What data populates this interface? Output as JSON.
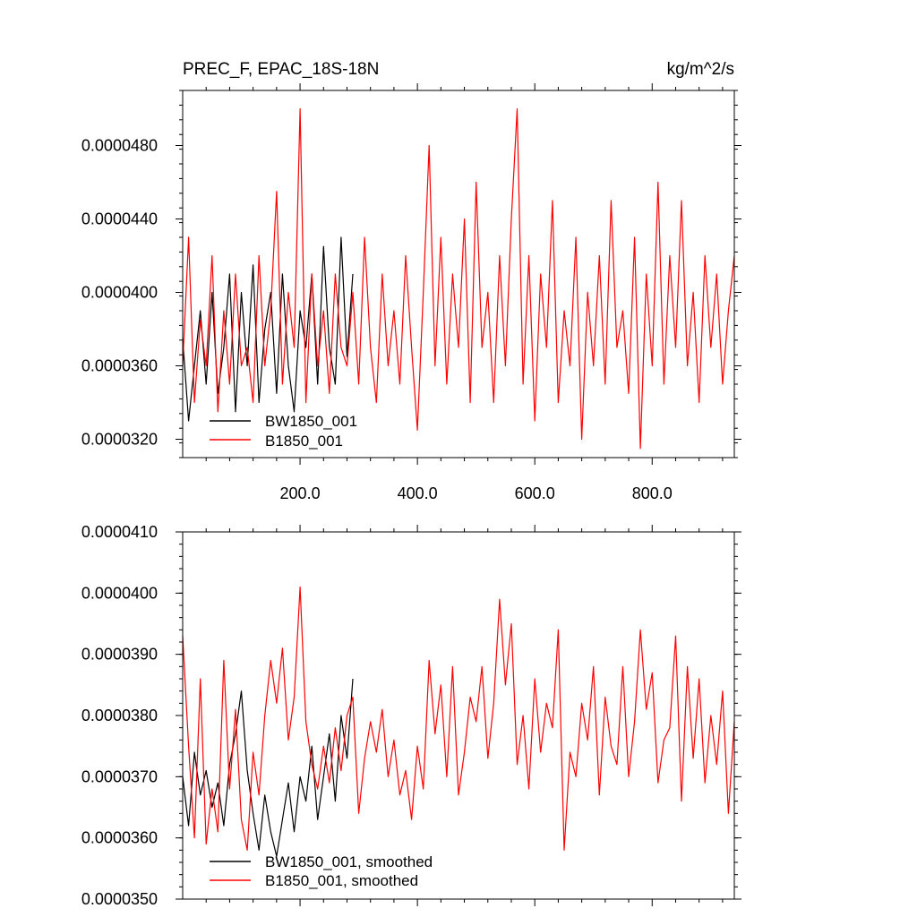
{
  "chart_data": [
    {
      "type": "line",
      "title": "PREC_F, EPAC_18S-18N",
      "units": "kg/m^2/s",
      "xlim": [
        0,
        940
      ],
      "ylim": [
        3.1e-05,
        5.1e-05
      ],
      "xticks": [
        200,
        400,
        600,
        800
      ],
      "xtick_labels": [
        "200.0",
        "400.0",
        "600.0",
        "800.0"
      ],
      "yticks": [
        3.2e-05,
        3.6e-05,
        4e-05,
        4.4e-05,
        4.8e-05
      ],
      "ytick_labels": [
        "0.0000320",
        "0.0000360",
        "0.0000400",
        "0.0000440",
        "0.0000480"
      ],
      "legend_position": "bottom-left",
      "series": [
        {
          "name": "BW1850_001",
          "color": "#000000",
          "x": [
            0,
            10,
            20,
            30,
            40,
            50,
            60,
            70,
            80,
            90,
            100,
            110,
            120,
            130,
            140,
            150,
            160,
            170,
            180,
            190,
            200,
            210,
            220,
            230,
            240,
            250,
            260,
            270,
            280,
            290
          ],
          "values": [
            3.75e-05,
            3.3e-05,
            3.6e-05,
            3.9e-05,
            3.5e-05,
            4e-05,
            3.45e-05,
            3.7e-05,
            4.1e-05,
            3.35e-05,
            4e-05,
            3.6e-05,
            4.15e-05,
            3.4e-05,
            3.8e-05,
            4e-05,
            3.45e-05,
            4.1e-05,
            3.6e-05,
            3.35e-05,
            3.9e-05,
            3.7e-05,
            4.1e-05,
            3.5e-05,
            4.25e-05,
            3.7e-05,
            3.5e-05,
            4.3e-05,
            3.65e-05,
            4.1e-05
          ]
        },
        {
          "name": "B1850_001",
          "color": "#ff0000",
          "x": [
            0,
            10,
            20,
            30,
            40,
            50,
            60,
            70,
            80,
            90,
            100,
            110,
            120,
            130,
            140,
            150,
            160,
            170,
            180,
            190,
            200,
            210,
            220,
            230,
            240,
            250,
            260,
            270,
            280,
            290,
            300,
            310,
            320,
            330,
            340,
            350,
            360,
            370,
            380,
            390,
            400,
            410,
            420,
            430,
            440,
            450,
            460,
            470,
            480,
            490,
            500,
            510,
            520,
            530,
            540,
            550,
            560,
            570,
            580,
            590,
            600,
            610,
            620,
            630,
            640,
            650,
            660,
            670,
            680,
            690,
            700,
            710,
            720,
            730,
            740,
            750,
            760,
            770,
            780,
            790,
            800,
            810,
            820,
            830,
            840,
            850,
            860,
            870,
            880,
            890,
            900,
            910,
            920,
            930,
            940
          ],
          "values": [
            3.6e-05,
            4.3e-05,
            3.4e-05,
            3.85e-05,
            3.6e-05,
            4.2e-05,
            3.35e-05,
            3.9e-05,
            3.5e-05,
            4.1e-05,
            3.6e-05,
            3.7e-05,
            3.4e-05,
            4.2e-05,
            3.6e-05,
            3.9e-05,
            4.55e-05,
            3.5e-05,
            4e-05,
            3.7e-05,
            5e-05,
            3.4e-05,
            4.1e-05,
            3.6e-05,
            3.9e-05,
            3.45e-05,
            4.1e-05,
            3.7e-05,
            3.6e-05,
            4e-05,
            3.5e-05,
            4.3e-05,
            3.7e-05,
            3.4e-05,
            4.1e-05,
            3.6e-05,
            3.9e-05,
            3.5e-05,
            4.2e-05,
            3.7e-05,
            3.25e-05,
            4e-05,
            4.8e-05,
            3.6e-05,
            4.3e-05,
            3.5e-05,
            4.1e-05,
            3.7e-05,
            4.4e-05,
            3.4e-05,
            4.6e-05,
            3.7e-05,
            4e-05,
            3.4e-05,
            4.2e-05,
            3.6e-05,
            4.4e-05,
            5e-05,
            3.5e-05,
            4.2e-05,
            3.3e-05,
            4.1e-05,
            3.7e-05,
            4.5e-05,
            3.4e-05,
            3.9e-05,
            3.6e-05,
            4.3e-05,
            3.2e-05,
            4e-05,
            3.6e-05,
            4.2e-05,
            3.5e-05,
            4.5e-05,
            3.7e-05,
            3.9e-05,
            3.45e-05,
            4.3e-05,
            3.15e-05,
            4.1e-05,
            3.6e-05,
            4.6e-05,
            3.5e-05,
            4.2e-05,
            3.7e-05,
            4.5e-05,
            3.6e-05,
            4e-05,
            3.4e-05,
            4.2e-05,
            3.7e-05,
            4.1e-05,
            3.5e-05,
            3.9e-05,
            4.2e-05
          ]
        }
      ]
    },
    {
      "type": "line",
      "xlim": [
        0,
        940
      ],
      "ylim": [
        3.5e-05,
        4.1e-05
      ],
      "yticks": [
        3.5e-05,
        3.6e-05,
        3.7e-05,
        3.8e-05,
        3.9e-05,
        4e-05,
        4.1e-05
      ],
      "ytick_labels": [
        "0.0000350",
        "0.0000360",
        "0.0000370",
        "0.0000380",
        "0.0000390",
        "0.0000400",
        "0.0000410"
      ],
      "legend_position": "bottom-left",
      "series": [
        {
          "name": "BW1850_001, smoothed",
          "color": "#000000",
          "x": [
            0,
            10,
            20,
            30,
            40,
            50,
            60,
            70,
            80,
            90,
            100,
            110,
            120,
            130,
            140,
            150,
            160,
            170,
            180,
            190,
            200,
            210,
            220,
            230,
            240,
            250,
            260,
            270,
            280,
            290
          ],
          "values": [
            3.7e-05,
            3.62e-05,
            3.74e-05,
            3.67e-05,
            3.71e-05,
            3.65e-05,
            3.69e-05,
            3.62e-05,
            3.72e-05,
            3.77e-05,
            3.84e-05,
            3.71e-05,
            3.64e-05,
            3.58e-05,
            3.67e-05,
            3.61e-05,
            3.57e-05,
            3.63e-05,
            3.69e-05,
            3.61e-05,
            3.7e-05,
            3.66e-05,
            3.75e-05,
            3.63e-05,
            3.7e-05,
            3.77e-05,
            3.66e-05,
            3.8e-05,
            3.73e-05,
            3.86e-05
          ]
        },
        {
          "name": "B1850_001, smoothed",
          "color": "#ff0000",
          "x": [
            0,
            10,
            20,
            30,
            40,
            50,
            60,
            70,
            80,
            90,
            100,
            110,
            120,
            130,
            140,
            150,
            160,
            170,
            180,
            190,
            200,
            210,
            220,
            230,
            240,
            250,
            260,
            270,
            280,
            290,
            300,
            310,
            320,
            330,
            340,
            350,
            360,
            370,
            380,
            390,
            400,
            410,
            420,
            430,
            440,
            450,
            460,
            470,
            480,
            490,
            500,
            510,
            520,
            530,
            540,
            550,
            560,
            570,
            580,
            590,
            600,
            610,
            620,
            630,
            640,
            650,
            660,
            670,
            680,
            690,
            700,
            710,
            720,
            730,
            740,
            750,
            760,
            770,
            780,
            790,
            800,
            810,
            820,
            830,
            840,
            850,
            860,
            870,
            880,
            890,
            900,
            910,
            920,
            930,
            940
          ],
          "values": [
            3.93e-05,
            3.75e-05,
            3.6e-05,
            3.86e-05,
            3.59e-05,
            3.68e-05,
            3.61e-05,
            3.89e-05,
            3.68e-05,
            3.81e-05,
            3.63e-05,
            3.58e-05,
            3.74e-05,
            3.67e-05,
            3.8e-05,
            3.89e-05,
            3.82e-05,
            3.91e-05,
            3.76e-05,
            3.83e-05,
            4.01e-05,
            3.79e-05,
            3.72e-05,
            3.68e-05,
            3.75e-05,
            3.69e-05,
            3.78e-05,
            3.71e-05,
            3.8e-05,
            3.83e-05,
            3.64e-05,
            3.73e-05,
            3.79e-05,
            3.74e-05,
            3.81e-05,
            3.7e-05,
            3.76e-05,
            3.67e-05,
            3.71e-05,
            3.63e-05,
            3.75e-05,
            3.68e-05,
            3.89e-05,
            3.77e-05,
            3.85e-05,
            3.7e-05,
            3.88e-05,
            3.67e-05,
            3.74e-05,
            3.83e-05,
            3.79e-05,
            3.88e-05,
            3.73e-05,
            3.82e-05,
            3.99e-05,
            3.85e-05,
            3.95e-05,
            3.72e-05,
            3.8e-05,
            3.68e-05,
            3.86e-05,
            3.74e-05,
            3.82e-05,
            3.78e-05,
            3.94e-05,
            3.58e-05,
            3.74e-05,
            3.7e-05,
            3.82e-05,
            3.76e-05,
            3.88e-05,
            3.67e-05,
            3.83e-05,
            3.75e-05,
            3.72e-05,
            3.88e-05,
            3.7e-05,
            3.79e-05,
            3.94e-05,
            3.81e-05,
            3.87e-05,
            3.69e-05,
            3.76e-05,
            3.78e-05,
            3.93e-05,
            3.66e-05,
            3.88e-05,
            3.73e-05,
            3.86e-05,
            3.69e-05,
            3.8e-05,
            3.72e-05,
            3.84e-05,
            3.64e-05,
            3.79e-05
          ]
        }
      ]
    }
  ]
}
